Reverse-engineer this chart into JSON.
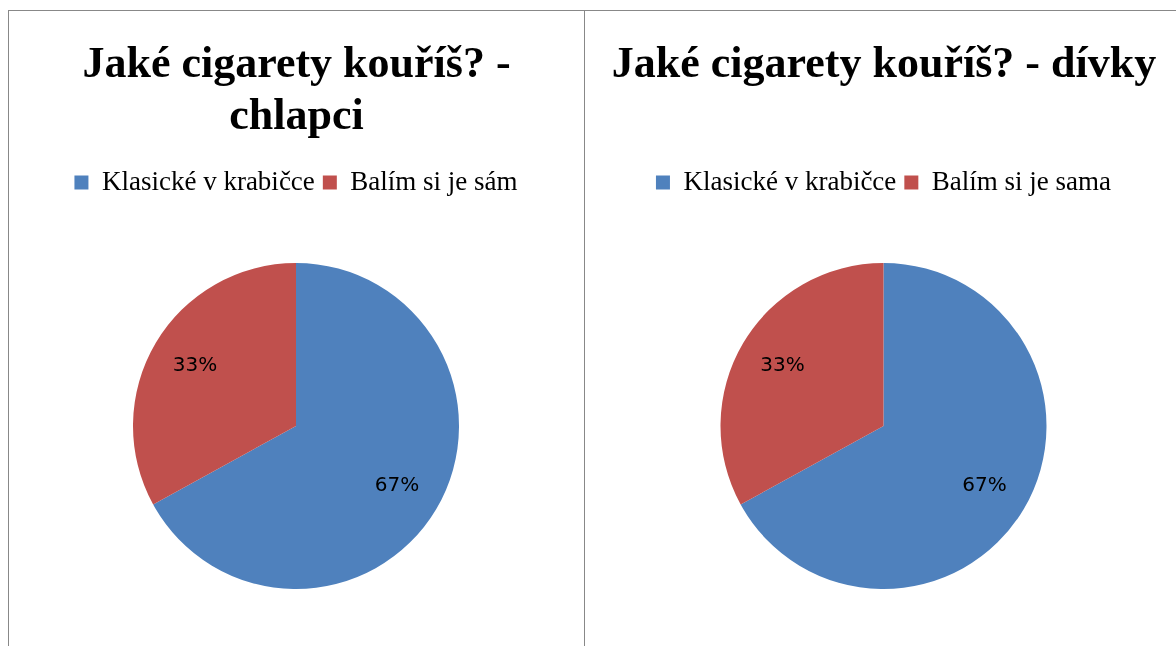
{
  "chart_data": [
    {
      "type": "pie",
      "title": "Jaké cigarety kouříš? - chlapci",
      "categories": [
        "Klasické v krabičce",
        "Balím si je sám"
      ],
      "values": [
        67,
        33
      ],
      "colors": [
        "#4f81bd",
        "#c0504d"
      ],
      "value_labels": [
        "67%",
        "33%"
      ],
      "legend": "top"
    },
    {
      "type": "pie",
      "title": "Jaké cigarety kouříš? - dívky",
      "categories": [
        "Klasické v krabičce",
        "Balím si je sama"
      ],
      "values": [
        67,
        33
      ],
      "colors": [
        "#4f81bd",
        "#c0504d"
      ],
      "value_labels": [
        "67%",
        "33%"
      ],
      "legend": "top"
    }
  ]
}
